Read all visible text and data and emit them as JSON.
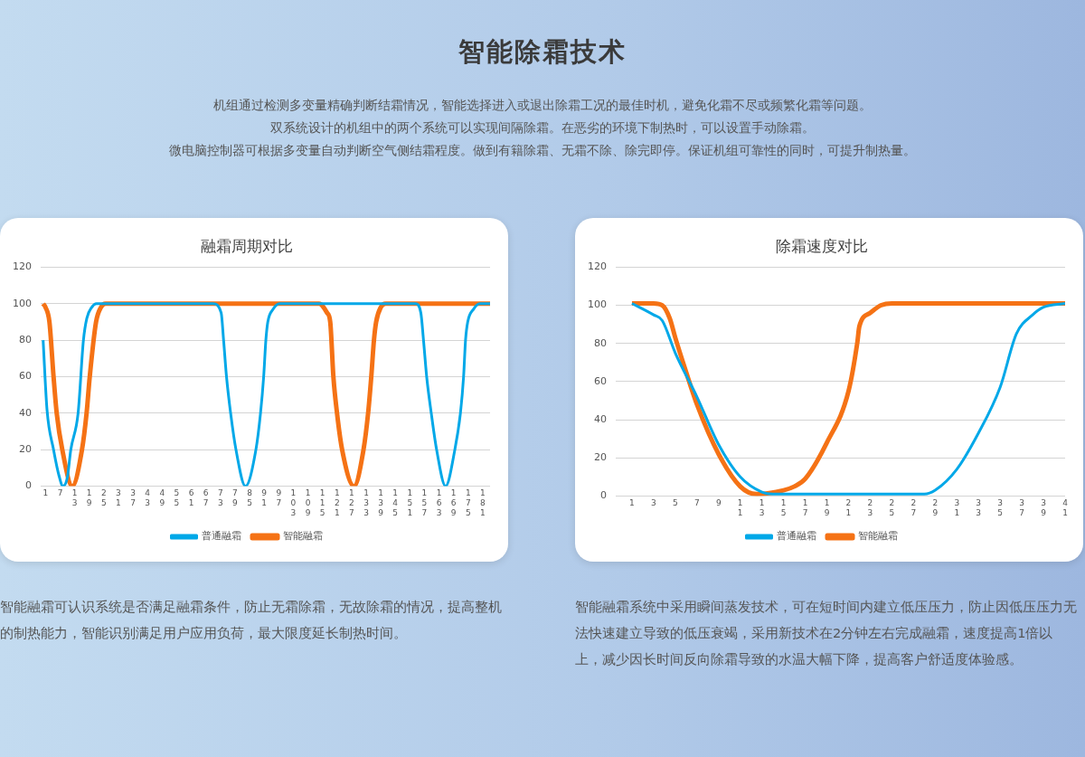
{
  "chart_data": [
    {
      "type": "other",
      "title": "智能除霜技术",
      "annotations": [
        "机组通过检测多变量精确判断结霜情况，智能选择进入或退出除霜工况的最佳时机，避免化霜不尽或频繁化霜等问题。",
        "双系统设计的机组中的两个系统可以实现间隔除霜。在恶劣的环境下制热时，可以设置手动除霜。",
        "微电脑控制器可根据多变量自动判断空气侧结霜程度。做到有籍除霜、无霜不除、除完即停。保证机组可靠性的同时，可提升制热量。"
      ]
    },
    {
      "type": "line",
      "title": "融霜周期对比",
      "xlim": [
        -1,
        184
      ],
      "xticks": [
        1,
        7,
        13,
        19,
        25,
        31,
        37,
        43,
        49,
        55,
        61,
        67,
        73,
        79,
        85,
        91,
        97,
        103,
        109,
        115,
        121,
        127,
        133,
        139,
        145,
        151,
        157,
        163,
        169,
        175,
        181
      ],
      "ylim": [
        0,
        120
      ],
      "yticks": [
        0,
        20,
        40,
        60,
        80,
        100,
        120
      ],
      "grid": "y",
      "legend": "bottom",
      "series": [
        {
          "name": "普通融霜",
          "color": "#00a8e8",
          "x": [
            0,
            1.6,
            4.3,
            6.5,
            8.2,
            10,
            11.4,
            14.4,
            16.6,
            18,
            20,
            22,
            70,
            73.3,
            74.3,
            75.5,
            77.2,
            79.4,
            83.3,
            87.6,
            89.5,
            90.8,
            91.7,
            92.5,
            94.7,
            97.4,
            153.3,
            155.5,
            156.6,
            157.9,
            159.8,
            162,
            165.7,
            169.5,
            171.8,
            173.1,
            173.9,
            174.8,
            177.2,
            179.8,
            184
          ],
          "values": [
            80,
            42,
            20,
            6,
            0,
            5,
            20,
            40,
            80,
            92,
            98,
            100,
            100,
            95,
            80,
            60,
            40,
            20,
            0,
            20,
            40,
            60,
            80,
            90,
            97,
            100,
            100,
            95,
            80,
            60,
            40,
            20,
            0,
            20,
            40,
            60,
            80,
            90,
            97,
            100,
            100
          ]
        },
        {
          "name": "智能融霜",
          "color": "#f57215",
          "x": [
            0,
            1,
            2.6,
            4.3,
            5.6,
            7.9,
            12,
            16,
            17.9,
            19.2,
            21.8,
            23.8,
            25.7,
            113.6,
            116.9,
            118.2,
            119.5,
            121,
            123.1,
            128,
            131.9,
            133.8,
            135.1,
            136.2,
            137.1,
            139,
            141,
            184
          ],
          "values": [
            100,
            98,
            90,
            60,
            40,
            20,
            0,
            20,
            40,
            60,
            90,
            98,
            100,
            100,
            95,
            90,
            60,
            40,
            20,
            0,
            20,
            40,
            60,
            80,
            90,
            98,
            100,
            100
          ]
        }
      ],
      "annotations": [
        "智能融霜可认识系统是否满足融霜条件，防止无霜除霜，无故除霜的情况，提高整机的制热能力，智能识别满足用户应用负荷，最大限度延长制热时间。"
      ]
    },
    {
      "type": "line",
      "title": "除霜速度对比",
      "xlim": [
        -0.5,
        41
      ],
      "xticks": [
        1,
        3,
        5,
        7,
        9,
        11,
        13,
        15,
        17,
        19,
        21,
        23,
        25,
        27,
        29,
        31,
        33,
        35,
        37,
        39,
        41
      ],
      "ylim": [
        0,
        120
      ],
      "yticks": [
        0,
        20,
        40,
        60,
        80,
        100,
        120
      ],
      "grid": "y",
      "legend": "bottom",
      "series": [
        {
          "name": "普通融霜",
          "color": "#00a8e8",
          "x": [
            1,
            3,
            3.8,
            5,
            7,
            9,
            11,
            13,
            14,
            28,
            29,
            31,
            33,
            35,
            36.5,
            38,
            39,
            41
          ],
          "values": [
            101,
            95,
            92,
            75,
            52,
            27,
            10,
            2,
            1,
            1,
            3,
            14,
            33,
            57,
            85,
            95,
            99,
            101
          ]
        },
        {
          "name": "智能融霜",
          "color": "#f57215",
          "x": [
            1,
            3,
            3.8,
            4.5,
            5,
            6,
            7,
            9,
            11,
            12.5,
            15,
            16,
            17,
            19,
            21,
            21.8,
            22,
            23,
            24,
            25,
            41
          ],
          "values": [
            101,
            101,
            100,
            93,
            83,
            65,
            48,
            22,
            5,
            1,
            3,
            5,
            9,
            28,
            55,
            80,
            89,
            96,
            100,
            101,
            101
          ]
        }
      ],
      "annotations": [
        "智能融霜系统中采用瞬间蒸发技术，可在短时间内建立低压压力，防止因低压压力无法快速建立导致的低压衰竭，采用新技术在2分钟左右完成融霜，速度提高1倍以上，减少因长时间反向除霜导致的水温大幅下降，提高客户舒适度体验感。"
      ]
    }
  ]
}
